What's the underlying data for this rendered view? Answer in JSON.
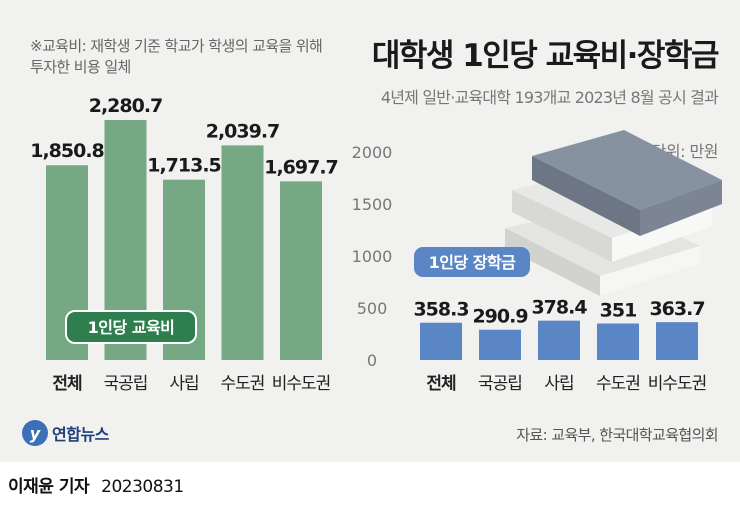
{
  "note": "※교육비: 재학생 기준 학교가 학생의 교육을 위해 투자한 비용 일체",
  "title": "대학생 1인당 교육비·장학금",
  "subtitle": "4년제 일반·교육대학 193개교 2023년 8월 공시 결과",
  "unit": "단위: 만원",
  "source": "자료: 교육부, 한국대학교육협의회",
  "logo": "연합뉴스",
  "byline_name": "이재윤 기자",
  "byline_date": "20230831",
  "colors": {
    "left_bar": "#76a884",
    "right_bar": "#5a86c6",
    "left_badge": "#2f7f4e",
    "right_badge": "#5a86c6"
  },
  "chart_data": [
    {
      "type": "bar",
      "title": "1인당 교육비",
      "categories": [
        "전체",
        "국공립",
        "사립",
        "수도권",
        "비수도권"
      ],
      "values": [
        1850.8,
        2280.7,
        1713.5,
        2039.7,
        1697.7
      ],
      "value_labels": [
        "1,850.8",
        "2,280.7",
        "1,713.5",
        "2,039.7",
        "1,697.7"
      ],
      "ylim": [
        0,
        2400
      ]
    },
    {
      "type": "bar",
      "title": "1인당 장학금",
      "categories": [
        "전체",
        "국공립",
        "사립",
        "수도권",
        "비수도권"
      ],
      "values": [
        358.3,
        290.9,
        378.4,
        351,
        363.7
      ],
      "value_labels": [
        "358.3",
        "290.9",
        "378.4",
        "351",
        "363.7"
      ],
      "yticks": [
        0,
        500,
        1000,
        1500,
        2000
      ],
      "ylim": [
        0,
        2000
      ]
    }
  ]
}
